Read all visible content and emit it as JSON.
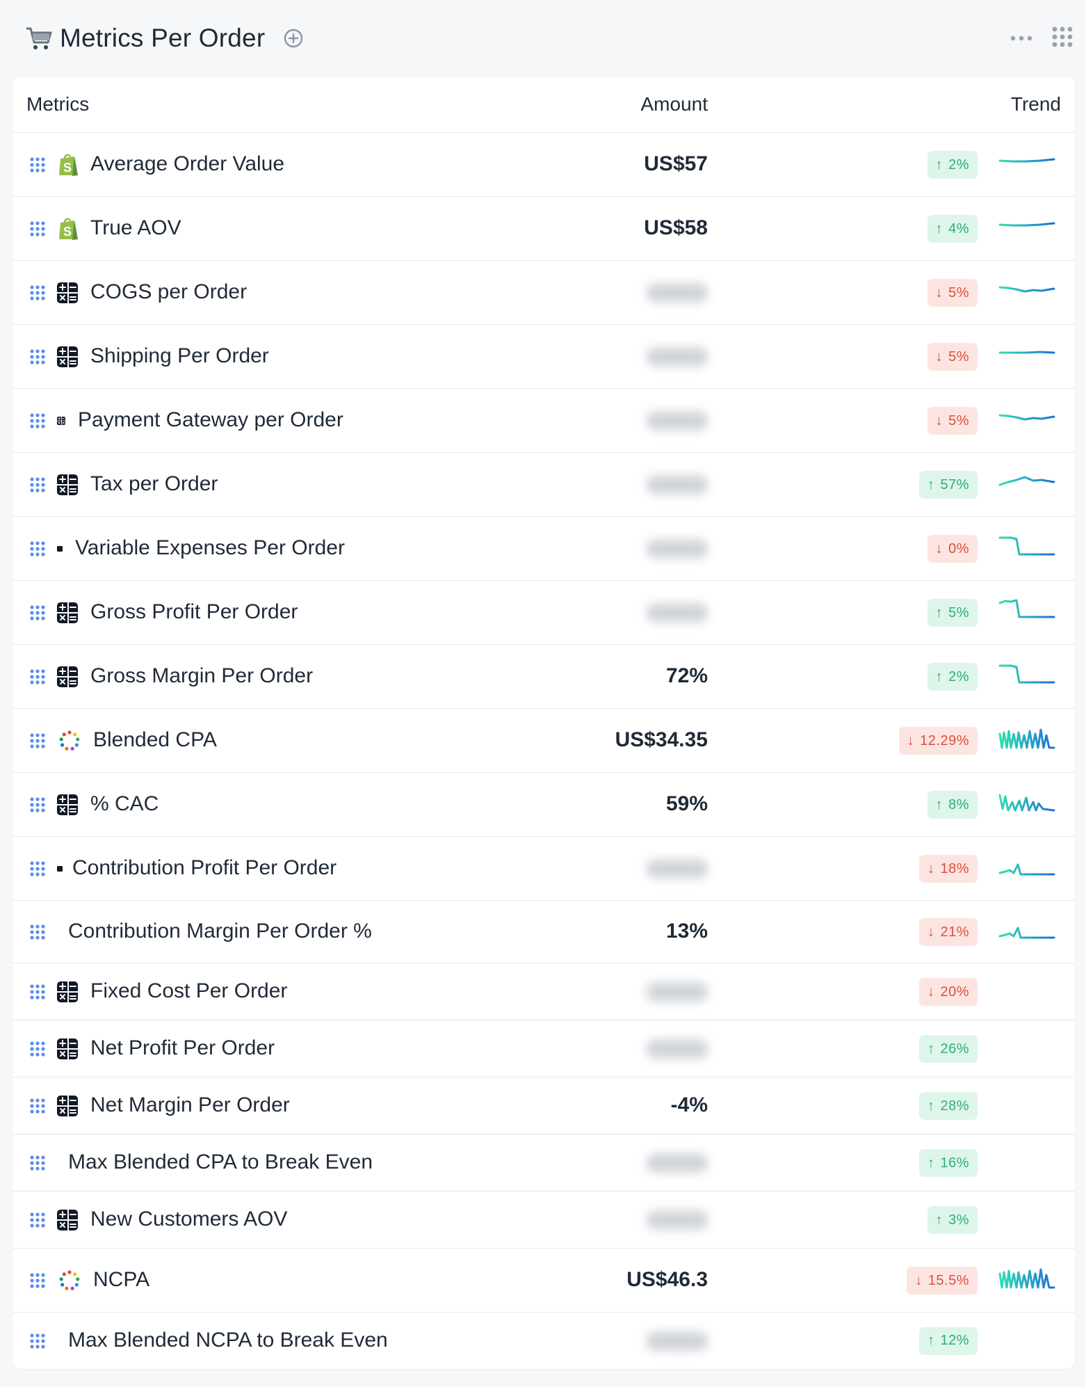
{
  "header": {
    "title": "Metrics Per Order",
    "icons": {
      "cart": "cart-icon",
      "add": "plus-circle-icon",
      "more": "ellipsis-icon",
      "apps": "grid-icon"
    }
  },
  "table": {
    "columns": {
      "metrics": "Metrics",
      "amount": "Amount",
      "trend": "Trend"
    },
    "rows": [
      {
        "label": "Average Order Value",
        "icon": "shopify-icon",
        "amount": "US$57",
        "blurred": false,
        "change": "2%",
        "dir": "up",
        "spark": "flat-up"
      },
      {
        "label": "True AOV",
        "icon": "shopify-icon",
        "amount": "US$58",
        "blurred": false,
        "change": "4%",
        "dir": "up",
        "spark": "flat-up"
      },
      {
        "label": "COGS per Order",
        "icon": "calculator-icon",
        "amount": "",
        "blurred": true,
        "change": "5%",
        "dir": "down",
        "spark": "wave-small"
      },
      {
        "label": "Shipping Per Order",
        "icon": "calculator-icon",
        "amount": "",
        "blurred": true,
        "change": "5%",
        "dir": "down",
        "spark": "flat"
      },
      {
        "label": "Payment Gateway per Order",
        "icon": "calculator-small-icon",
        "amount": "",
        "blurred": true,
        "change": "5%",
        "dir": "down",
        "spark": "wave-small"
      },
      {
        "label": "Tax per Order",
        "icon": "calculator-icon",
        "amount": "",
        "blurred": true,
        "change": "57%",
        "dir": "up",
        "spark": "hump"
      },
      {
        "label": "Variable Expenses Per Order",
        "icon": "calculator-tiny-icon",
        "amount": "",
        "blurred": true,
        "change": "0%",
        "dir": "down",
        "spark": "step-down"
      },
      {
        "label": "Gross Profit Per Order",
        "icon": "calculator-icon",
        "amount": "",
        "blurred": true,
        "change": "5%",
        "dir": "up",
        "spark": "step-down-wave"
      },
      {
        "label": "Gross Margin Per Order",
        "icon": "calculator-icon",
        "amount": "72%",
        "blurred": false,
        "change": "2%",
        "dir": "up",
        "spark": "step-down"
      },
      {
        "label": "Blended CPA",
        "icon": "dots-ring-icon",
        "amount": "US$34.35",
        "blurred": false,
        "change": "12.29%",
        "dir": "down",
        "spark": "zigzag-dense"
      },
      {
        "label": "% CAC",
        "icon": "calculator-icon",
        "amount": "59%",
        "blurred": false,
        "change": "8%",
        "dir": "up",
        "spark": "zigzag"
      },
      {
        "label": "Contribution Profit Per Order",
        "icon": "calculator-dot-icon",
        "amount": "",
        "blurred": true,
        "change": "18%",
        "dir": "down",
        "spark": "spike"
      },
      {
        "label": "Contribution Margin Per Order %",
        "icon": "none",
        "amount": "13%",
        "blurred": false,
        "change": "21%",
        "dir": "down",
        "spark": "spike"
      },
      {
        "label": "Fixed Cost Per Order",
        "icon": "calculator-icon",
        "amount": "",
        "blurred": true,
        "change": "20%",
        "dir": "down",
        "spark": "none"
      },
      {
        "label": "Net Profit Per Order",
        "icon": "calculator-icon",
        "amount": "",
        "blurred": true,
        "change": "26%",
        "dir": "up",
        "spark": "none"
      },
      {
        "label": "Net Margin Per Order",
        "icon": "calculator-icon",
        "amount": "-4%",
        "blurred": false,
        "change": "28%",
        "dir": "up",
        "spark": "none"
      },
      {
        "label": "Max Blended CPA to Break Even",
        "icon": "none",
        "amount": "",
        "blurred": true,
        "change": "16%",
        "dir": "up",
        "spark": "none"
      },
      {
        "label": "New Customers AOV",
        "icon": "calculator-icon",
        "amount": "",
        "blurred": true,
        "change": "3%",
        "dir": "up",
        "spark": "none"
      },
      {
        "label": "NCPA",
        "icon": "dots-ring-icon",
        "amount": "US$46.3",
        "blurred": false,
        "change": "15.5%",
        "dir": "down",
        "spark": "zigzag-dense"
      },
      {
        "label": "Max Blended NCPA to Break Even",
        "icon": "none",
        "amount": "",
        "blurred": true,
        "change": "12%",
        "dir": "up",
        "spark": "none"
      }
    ]
  },
  "colors": {
    "up_text": "#2eae7a",
    "up_bg": "#def5ea",
    "down_text": "#d9513f",
    "down_bg": "#fce4e1",
    "drag": "#5b8def",
    "spark_a": "#2ee0b0",
    "spark_b": "#1f6fd6"
  }
}
